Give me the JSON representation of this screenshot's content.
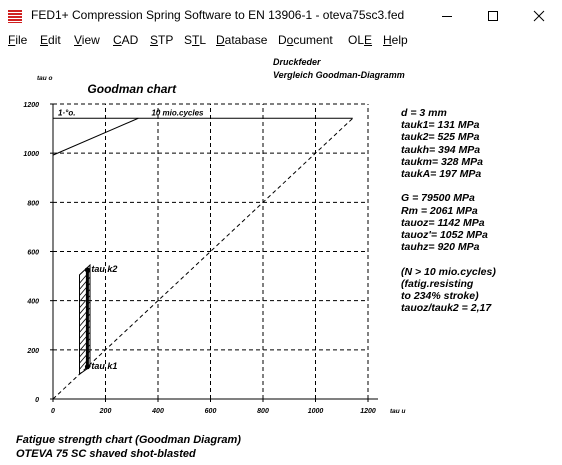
{
  "window": {
    "title": "FED1+  Compression Spring Software to EN 13906-1  -  oteva75sc3.fed",
    "minimize_icon": "minimize-icon",
    "maximize_icon": "maximize-icon",
    "close_icon": "close-icon"
  },
  "menu": [
    {
      "pre": "",
      "ul": "F",
      "post": "ile"
    },
    {
      "pre": "",
      "ul": "E",
      "post": "dit"
    },
    {
      "pre": "",
      "ul": "V",
      "post": "iew"
    },
    {
      "pre": "",
      "ul": "C",
      "post": "AD"
    },
    {
      "pre": "",
      "ul": "S",
      "post": "TP"
    },
    {
      "pre": "S",
      "ul": "T",
      "post": "L"
    },
    {
      "pre": "",
      "ul": "D",
      "post": "atabase"
    },
    {
      "pre": "D",
      "ul": "o",
      "post": "cument"
    },
    {
      "pre": "OL",
      "ul": "E",
      "post": ""
    },
    {
      "pre": "",
      "ul": "H",
      "post": "elp"
    }
  ],
  "doc": {
    "header1": "Druckfeder",
    "header2": "Vergleich Goodman-Diagramm",
    "footer1": "Fatigue strength chart (Goodman Diagram)",
    "footer2": "OTEVA 75 SC shaved  shot-blasted"
  },
  "params": [
    "d  = 3 mm",
    "tauk1=  131 MPa",
    "tauk2=  525 MPa",
    "taukh=  394 MPa",
    "taukm=  328 MPa",
    "taukA=  197 MPa",
    "",
    "G  =  79500 MPa",
    "Rm =  2061 MPa",
    "tauoz= 1142 MPa",
    "tauoz'= 1052 MPa",
    "tauhz=  920 MPa",
    "",
    "(N > 10 mio.cycles)",
    "(fatig.resisting",
    "to 234% stroke)",
    "tauoz/tauk2 = 2,17"
  ],
  "chart_data": {
    "type": "line",
    "title": "Goodman chart",
    "xlabel": "tau u",
    "ylabel": "tau o",
    "xlim": [
      0,
      1200
    ],
    "ylim": [
      0,
      1200
    ],
    "xticks": [
      0,
      200,
      400,
      600,
      800,
      1000,
      1200
    ],
    "yticks": [
      0,
      200,
      400,
      600,
      800,
      1000,
      1200
    ],
    "grid": true,
    "annotations": [
      "10 mio.cycles",
      "1·°o.",
      "tau k2",
      "tau k1"
    ],
    "series": [
      {
        "values": [
          [
            0,
            0
          ],
          [
            1142,
            1142
          ]
        ]
      },
      {
        "values": [
          [
            0,
            1142
          ],
          [
            1142,
            1142
          ]
        ]
      },
      {
        "values": [
          [
            0,
            992
          ],
          [
            325,
            1142
          ]
        ]
      },
      {
        "values": [
          [
            0,
            1142
          ],
          [
            0,
            992
          ]
        ]
      }
    ],
    "stroke": {
      "tauk1": 131,
      "tauk2": 525
    },
    "colors": {
      "line": "#000000"
    }
  }
}
